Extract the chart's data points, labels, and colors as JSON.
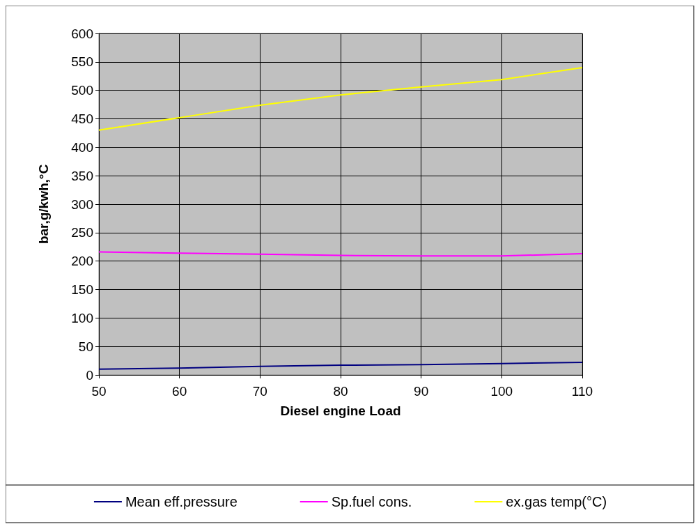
{
  "chart_data": {
    "type": "line",
    "xlabel": "Diesel engine Load",
    "ylabel": "bar,g/kwh,°C",
    "x": [
      50,
      60,
      70,
      80,
      90,
      100,
      110
    ],
    "series": [
      {
        "name": "Mean eff.pressure",
        "color": "#000080",
        "values": [
          10,
          12,
          15,
          17,
          18,
          20,
          22
        ]
      },
      {
        "name": "Sp.fuel cons.",
        "color": "#ff00ff",
        "values": [
          216,
          214,
          212,
          210,
          209,
          209,
          213
        ]
      },
      {
        "name": "ex.gas temp(°C)",
        "color": "#ffff00",
        "values": [
          430,
          452,
          474,
          492,
          506,
          519,
          540
        ]
      }
    ],
    "xlim": [
      50,
      110
    ],
    "xticks": [
      50,
      60,
      70,
      80,
      90,
      100,
      110
    ],
    "ylim": [
      0,
      600
    ],
    "yticks": [
      0,
      50,
      100,
      150,
      200,
      250,
      300,
      350,
      400,
      450,
      500,
      550,
      600
    ],
    "grid": true,
    "legend": "bottom",
    "marker": "none",
    "line_style": "solid"
  }
}
